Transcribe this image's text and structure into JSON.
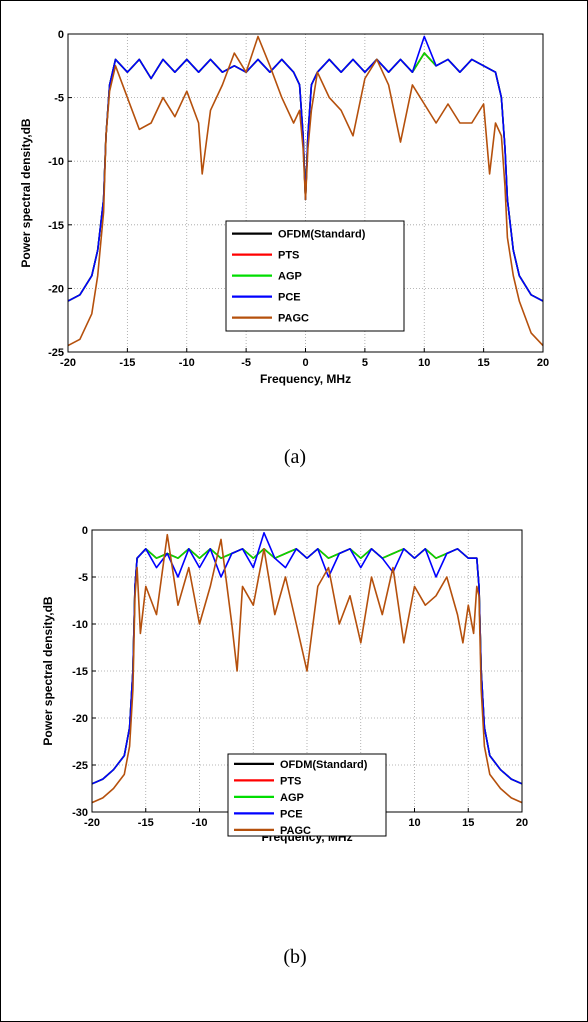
{
  "chart_data": [
    {
      "type": "line",
      "caption": "(a)",
      "xlabel": "Frequency, MHz",
      "ylabel": "Power spectral density,dB",
      "xlim": [
        -20,
        20
      ],
      "ylim": [
        -25,
        0
      ],
      "xticks": [
        -20,
        -15,
        -10,
        -5,
        0,
        5,
        10,
        15,
        20
      ],
      "yticks": [
        0,
        -5,
        -10,
        -15,
        -20,
        -25
      ],
      "grid": true,
      "legend_position": "bottom-center",
      "series": [
        {
          "name": "OFDM(Standard)",
          "color": "#000000",
          "x": [
            -20,
            -19,
            -18,
            -17.5,
            -17,
            -16.8,
            -16.5,
            -16,
            -15,
            -14,
            -13,
            -12,
            -11,
            -10,
            -9,
            -8,
            -7,
            -6,
            -5,
            -4,
            -3,
            -2,
            -1,
            -0.5,
            -0.2,
            0,
            0.2,
            0.5,
            1,
            2,
            3,
            4,
            5,
            6,
            7,
            8,
            9,
            10,
            11,
            12,
            13,
            14,
            15,
            16,
            16.5,
            16.8,
            17,
            17.5,
            18,
            19,
            20
          ],
          "y": [
            -21,
            -20.5,
            -19,
            -17,
            -13,
            -8,
            -4,
            -2,
            -3,
            -2,
            -3.5,
            -2,
            -3,
            -2,
            -3,
            -2,
            -3,
            -2.5,
            -3,
            -2,
            -3,
            -2,
            -3,
            -4,
            -8,
            -13,
            -8,
            -4,
            -3,
            -2,
            -3,
            -2,
            -3,
            -2,
            -3,
            -2,
            -3,
            -1.5,
            -2.5,
            -2,
            -3,
            -2,
            -2.5,
            -3,
            -5,
            -9,
            -13,
            -17,
            -19,
            -20.5,
            -21
          ]
        },
        {
          "name": "PTS",
          "color": "#ff0000",
          "x": [
            -20,
            -19,
            -18,
            -17.5,
            -17,
            -16.8,
            -16.5,
            -16,
            -15,
            -14,
            -13,
            -12,
            -11,
            -10,
            -9,
            -8,
            -7,
            -6,
            -5,
            -4,
            -3,
            -2,
            -1,
            -0.5,
            -0.2,
            0,
            0.2,
            0.5,
            1,
            2,
            3,
            4,
            5,
            6,
            7,
            8,
            9,
            10,
            11,
            12,
            13,
            14,
            15,
            16,
            16.5,
            16.8,
            17,
            17.5,
            18,
            19,
            20
          ],
          "y": [
            -21,
            -20.5,
            -19,
            -17,
            -13,
            -8,
            -4,
            -2,
            -3,
            -2,
            -3.5,
            -2,
            -3,
            -2,
            -3,
            -2,
            -3,
            -2.5,
            -3,
            -2,
            -3,
            -2,
            -3,
            -4,
            -8,
            -13,
            -8,
            -4,
            -3,
            -2,
            -3,
            -2,
            -3,
            -2,
            -3,
            -2,
            -3,
            -1.5,
            -2.5,
            -2,
            -3,
            -2,
            -2.5,
            -3,
            -5,
            -9,
            -13,
            -17,
            -19,
            -20.5,
            -21
          ]
        },
        {
          "name": "AGP",
          "color": "#00dd00",
          "x": [
            -20,
            -19,
            -18,
            -17.5,
            -17,
            -16.8,
            -16.5,
            -16,
            -15,
            -14,
            -13,
            -12,
            -11,
            -10,
            -9,
            -8,
            -7,
            -6,
            -5,
            -4,
            -3,
            -2,
            -1,
            -0.5,
            -0.2,
            0,
            0.2,
            0.5,
            1,
            2,
            3,
            4,
            5,
            6,
            7,
            8,
            9,
            10,
            11,
            12,
            13,
            14,
            15,
            16,
            16.5,
            16.8,
            17,
            17.5,
            18,
            19,
            20
          ],
          "y": [
            -21,
            -20.5,
            -19,
            -17,
            -13,
            -8,
            -4,
            -2,
            -3,
            -2,
            -3.5,
            -2,
            -3,
            -2,
            -3,
            -2,
            -3,
            -2.5,
            -3,
            -2,
            -3,
            -2,
            -3,
            -4,
            -8,
            -13,
            -8,
            -4,
            -3,
            -2,
            -3,
            -2,
            -3,
            -2,
            -3,
            -2,
            -3,
            -1.5,
            -2.5,
            -2,
            -3,
            -2,
            -2.5,
            -3,
            -5,
            -9,
            -13,
            -17,
            -19,
            -20.5,
            -21
          ]
        },
        {
          "name": "PCE",
          "color": "#0000ff",
          "x": [
            -20,
            -19,
            -18,
            -17.5,
            -17,
            -16.8,
            -16.5,
            -16,
            -15,
            -14,
            -13,
            -12,
            -11,
            -10,
            -9,
            -8,
            -7,
            -6,
            -5,
            -4,
            -3,
            -2,
            -1,
            -0.5,
            -0.2,
            0,
            0.2,
            0.5,
            1,
            2,
            3,
            4,
            5,
            6,
            7,
            8,
            9,
            10,
            11,
            12,
            13,
            14,
            15,
            16,
            16.5,
            16.8,
            17,
            17.5,
            18,
            19,
            20
          ],
          "y": [
            -21,
            -20.5,
            -19,
            -17,
            -13,
            -8,
            -4,
            -2,
            -3,
            -2,
            -3.5,
            -2,
            -3,
            -2,
            -3,
            -2,
            -3,
            -2.5,
            -3,
            -2,
            -3,
            -2,
            -3,
            -4,
            -8,
            -13,
            -8,
            -4,
            -3,
            -2,
            -3,
            -2,
            -3,
            -2,
            -3,
            -2,
            -3,
            -0.2,
            -2.5,
            -2,
            -3,
            -2,
            -2.5,
            -3,
            -5,
            -9,
            -13,
            -17,
            -19,
            -20.5,
            -21
          ]
        },
        {
          "name": "PAGC",
          "color": "#b5500c",
          "x": [
            -20,
            -19,
            -18,
            -17.5,
            -17,
            -16.8,
            -16.5,
            -16,
            -15,
            -14,
            -13,
            -12,
            -11,
            -10,
            -9,
            -8.7,
            -8,
            -7,
            -6,
            -5,
            -4,
            -3,
            -2,
            -1,
            -0.5,
            -0.2,
            0,
            0.2,
            0.5,
            1,
            2,
            3,
            4,
            5,
            6,
            7,
            8,
            9,
            10,
            11,
            12,
            13,
            14,
            15,
            15.5,
            16,
            16.5,
            16.8,
            17,
            17.5,
            18,
            19,
            20
          ],
          "y": [
            -24.5,
            -24,
            -22,
            -19,
            -14,
            -8,
            -4.5,
            -2.5,
            -5,
            -7.5,
            -7,
            -5,
            -6.5,
            -4.5,
            -7,
            -11,
            -6,
            -4,
            -1.5,
            -3,
            -0.2,
            -2.5,
            -5,
            -7,
            -6,
            -9,
            -13,
            -9,
            -6,
            -3,
            -5,
            -6,
            -8,
            -3.5,
            -2,
            -4,
            -8.5,
            -4,
            -5.5,
            -7,
            -5.5,
            -7,
            -7,
            -5.5,
            -11,
            -7,
            -8,
            -12,
            -16,
            -19,
            -21,
            -23.5,
            -24.5
          ]
        }
      ]
    },
    {
      "type": "line",
      "caption": "(b)",
      "xlabel": "Frequency, MHz",
      "ylabel": "Power spectral density,dB",
      "xlim": [
        -20,
        20
      ],
      "ylim": [
        -30,
        0
      ],
      "xticks": [
        -20,
        -15,
        -10,
        -5,
        0,
        5,
        10,
        15,
        20
      ],
      "yticks": [
        0,
        -5,
        -10,
        -15,
        -20,
        -25,
        -30
      ],
      "grid": true,
      "legend_position": "bottom-center",
      "series": [
        {
          "name": "OFDM(Standard)",
          "color": "#000000",
          "x": [
            -20,
            -19,
            -18,
            -17,
            -16.5,
            -16.2,
            -16,
            -15.8,
            -15,
            -14,
            -13,
            -12,
            -11,
            -10,
            -9,
            -8,
            -7,
            -6,
            -5,
            -4,
            -3,
            -2,
            -1,
            0,
            1,
            2,
            3,
            4,
            5,
            6,
            7,
            8,
            9,
            10,
            11,
            12,
            13,
            14,
            15,
            15.8,
            16,
            16.2,
            16.5,
            17,
            18,
            19,
            20
          ],
          "y": [
            -27,
            -26.5,
            -25.5,
            -24,
            -21,
            -15,
            -6,
            -3,
            -2,
            -3,
            -2.5,
            -3,
            -2,
            -3,
            -2,
            -3,
            -2.5,
            -2,
            -3,
            -2,
            -3,
            -2.5,
            -2,
            -3,
            -2,
            -3,
            -2.5,
            -2,
            -3,
            -2,
            -3,
            -2.5,
            -2,
            -3,
            -2,
            -3,
            -2.5,
            -2,
            -3,
            -3,
            -6,
            -15,
            -21,
            -24,
            -25.5,
            -26.5,
            -27
          ]
        },
        {
          "name": "PTS",
          "color": "#ff0000",
          "x": [
            -20,
            -19,
            -18,
            -17,
            -16.5,
            -16.2,
            -16,
            -15.8,
            -15,
            -14,
            -13,
            -12,
            -11,
            -10,
            -9,
            -8,
            -7,
            -6,
            -5,
            -4,
            -3,
            -2,
            -1,
            0,
            1,
            2,
            3,
            4,
            5,
            6,
            7,
            8,
            9,
            10,
            11,
            12,
            13,
            14,
            15,
            15.8,
            16,
            16.2,
            16.5,
            17,
            18,
            19,
            20
          ],
          "y": [
            -27,
            -26.5,
            -25.5,
            -24,
            -21,
            -15,
            -6,
            -3,
            -2,
            -3,
            -2.5,
            -3,
            -2,
            -3,
            -2,
            -3,
            -2.5,
            -2,
            -3,
            -2,
            -3,
            -2.5,
            -2,
            -3,
            -2,
            -3,
            -2.5,
            -2,
            -3,
            -2,
            -3,
            -2.5,
            -2,
            -3,
            -2,
            -3,
            -2.5,
            -2,
            -3,
            -3,
            -6,
            -15,
            -21,
            -24,
            -25.5,
            -26.5,
            -27
          ]
        },
        {
          "name": "AGP",
          "color": "#00dd00",
          "x": [
            -20,
            -19,
            -18,
            -17,
            -16.5,
            -16.2,
            -16,
            -15.8,
            -15,
            -14,
            -13,
            -12,
            -11,
            -10,
            -9,
            -8,
            -7,
            -6,
            -5,
            -4,
            -3,
            -2,
            -1,
            0,
            1,
            2,
            3,
            4,
            5,
            6,
            7,
            8,
            9,
            10,
            11,
            12,
            13,
            14,
            15,
            15.8,
            16,
            16.2,
            16.5,
            17,
            18,
            19,
            20
          ],
          "y": [
            -27,
            -26.5,
            -25.5,
            -24,
            -21,
            -15,
            -6,
            -3,
            -2,
            -3,
            -2.5,
            -3,
            -2,
            -3,
            -2,
            -3,
            -2.5,
            -2,
            -3,
            -2,
            -3,
            -2.5,
            -2,
            -3,
            -2,
            -3,
            -2.5,
            -2,
            -3,
            -2,
            -3,
            -2.5,
            -2,
            -3,
            -2,
            -3,
            -2.5,
            -2,
            -3,
            -3,
            -6,
            -15,
            -21,
            -24,
            -25.5,
            -26.5,
            -27
          ]
        },
        {
          "name": "PCE",
          "color": "#0000ff",
          "x": [
            -20,
            -19,
            -18,
            -17,
            -16.5,
            -16.2,
            -16,
            -15.8,
            -15,
            -14,
            -13,
            -12,
            -11,
            -10,
            -9,
            -8,
            -7,
            -6,
            -5,
            -4,
            -3,
            -2,
            -1,
            0,
            1,
            2,
            3,
            4,
            5,
            6,
            7,
            8,
            9,
            10,
            11,
            12,
            13,
            14,
            15,
            15.8,
            16,
            16.2,
            16.5,
            17,
            18,
            19,
            20
          ],
          "y": [
            -27,
            -26.5,
            -25.5,
            -24,
            -21,
            -15,
            -6,
            -3,
            -2,
            -4,
            -2.5,
            -5,
            -2,
            -4,
            -2,
            -5,
            -2.5,
            -2,
            -4,
            -0.3,
            -3,
            -4,
            -2,
            -3,
            -2,
            -5,
            -2.5,
            -2,
            -4,
            -2,
            -3,
            -4.5,
            -2,
            -3,
            -2,
            -5,
            -2.5,
            -2,
            -3,
            -3,
            -6,
            -15,
            -21,
            -24,
            -25.5,
            -26.5,
            -27
          ]
        },
        {
          "name": "PAGC",
          "color": "#b5500c",
          "x": [
            -20,
            -19,
            -18,
            -17,
            -16.5,
            -16.2,
            -16,
            -15.8,
            -15.5,
            -15,
            -14,
            -13,
            -12,
            -11,
            -10,
            -9,
            -8,
            -7,
            -6.5,
            -6,
            -5,
            -4,
            -3,
            -2,
            -1,
            0,
            1,
            2,
            3,
            4,
            5,
            6,
            7,
            8,
            9,
            10,
            11,
            12,
            13,
            14,
            14.5,
            15,
            15.5,
            15.8,
            16,
            16.2,
            16.5,
            17,
            18,
            19,
            20
          ],
          "y": [
            -29,
            -28.5,
            -27.5,
            -26,
            -23,
            -17,
            -7,
            -4,
            -11,
            -6,
            -9,
            -0.5,
            -8,
            -4,
            -10,
            -6,
            -1,
            -10,
            -15,
            -6,
            -8,
            -2,
            -9,
            -5,
            -10,
            -15,
            -6,
            -4,
            -10,
            -7,
            -12,
            -5,
            -9,
            -4,
            -12,
            -6,
            -8,
            -7,
            -5,
            -9,
            -12,
            -8,
            -11,
            -6,
            -7,
            -17,
            -23,
            -26,
            -27.5,
            -28.5,
            -29
          ]
        }
      ]
    }
  ]
}
